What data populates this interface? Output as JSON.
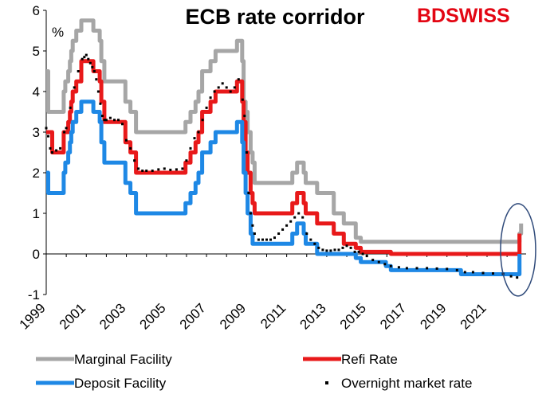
{
  "brand": {
    "part1": "BD",
    "part2": "SWISS"
  },
  "chart_data": {
    "type": "line",
    "title": "ECB rate corridor",
    "ylabel": "%",
    "xlabel": "",
    "xlim": [
      1999.0,
      2022.95
    ],
    "ylim": [
      -1,
      6
    ],
    "y_ticks": [
      -1,
      0,
      1,
      2,
      3,
      4,
      5,
      6
    ],
    "x_ticks": [
      "1999",
      "2001",
      "2003",
      "2005",
      "2007",
      "2009",
      "2011",
      "2013",
      "2015",
      "2017",
      "2019",
      "2021"
    ],
    "legend_placement": "bottom",
    "grid": false,
    "annotation": "ellipse highlighting 2022 rate increases",
    "series": [
      {
        "name": "Marginal Facility",
        "color": "#a6a6a6",
        "style": "line",
        "x": [
          1999.0,
          1999.05,
          1999.1,
          1999.3,
          1999.87,
          1999.95,
          2000.1,
          2000.18,
          2000.25,
          2000.32,
          2000.5,
          2000.75,
          2001.35,
          2001.67,
          2001.75,
          2001.9,
          2002.95,
          2003.2,
          2003.48,
          2005.95,
          2006.2,
          2006.45,
          2006.6,
          2006.78,
          2007.2,
          2007.45,
          2008.52,
          2008.78,
          2008.85,
          2008.95,
          2009.05,
          2009.2,
          2009.3,
          2009.4,
          2011.28,
          2011.52,
          2011.85,
          2011.95,
          2012.52,
          2013.35,
          2013.85,
          2014.45,
          2014.7,
          2022.55,
          2022.62,
          2022.7
        ],
        "y": [
          4.5,
          4.5,
          3.5,
          3.5,
          4.0,
          4.25,
          4.5,
          4.75,
          5.0,
          5.25,
          5.5,
          5.75,
          5.5,
          5.25,
          4.75,
          4.25,
          3.75,
          3.5,
          3.0,
          3.25,
          3.5,
          3.75,
          4.0,
          4.5,
          4.75,
          5.0,
          5.25,
          4.75,
          3.75,
          3.5,
          3.0,
          2.5,
          2.25,
          1.75,
          2.0,
          2.25,
          2.0,
          1.75,
          1.5,
          1.0,
          0.75,
          0.4,
          0.3,
          0.3,
          0.5,
          0.75
        ]
      },
      {
        "name": "Refi Rate",
        "color": "#e8191a",
        "style": "line",
        "x": [
          1999.0,
          1999.3,
          1999.87,
          2000.1,
          2000.18,
          2000.25,
          2000.32,
          2000.5,
          2000.75,
          2001.35,
          2001.67,
          2001.75,
          2001.9,
          2002.95,
          2003.2,
          2003.48,
          2005.95,
          2006.2,
          2006.45,
          2006.6,
          2006.78,
          2007.2,
          2007.45,
          2008.52,
          2008.78,
          2008.85,
          2008.95,
          2009.05,
          2009.2,
          2009.3,
          2009.4,
          2011.28,
          2011.52,
          2011.85,
          2011.95,
          2012.52,
          2013.35,
          2013.85,
          2014.45,
          2014.7,
          2016.2,
          2022.55,
          2022.62
        ],
        "y": [
          3.0,
          2.5,
          3.0,
          3.25,
          3.5,
          3.75,
          4.0,
          4.25,
          4.75,
          4.5,
          4.25,
          3.75,
          3.25,
          2.75,
          2.5,
          2.0,
          2.25,
          2.5,
          2.75,
          3.0,
          3.5,
          3.75,
          4.0,
          4.25,
          3.75,
          3.25,
          2.5,
          2.0,
          1.5,
          1.25,
          1.0,
          1.25,
          1.5,
          1.25,
          1.0,
          0.75,
          0.5,
          0.25,
          0.15,
          0.05,
          0.0,
          0.0,
          0.5
        ]
      },
      {
        "name": "Deposit Facility",
        "color": "#1e88e5",
        "style": "line",
        "x": [
          1999.0,
          1999.1,
          1999.3,
          1999.87,
          1999.95,
          2000.1,
          2000.18,
          2000.25,
          2000.32,
          2000.5,
          2000.75,
          2001.35,
          2001.67,
          2001.75,
          2001.9,
          2002.95,
          2003.2,
          2003.48,
          2005.95,
          2006.2,
          2006.45,
          2006.6,
          2006.78,
          2007.2,
          2007.45,
          2008.52,
          2008.78,
          2008.85,
          2008.95,
          2009.05,
          2009.2,
          2009.3,
          2009.4,
          2011.28,
          2011.52,
          2011.85,
          2011.95,
          2012.52,
          2014.45,
          2014.7,
          2015.95,
          2016.2,
          2019.7,
          2022.55,
          2022.62
        ],
        "y": [
          2.0,
          1.5,
          1.5,
          2.0,
          2.25,
          2.5,
          2.75,
          3.0,
          3.25,
          3.5,
          3.75,
          3.5,
          3.25,
          2.75,
          2.25,
          1.75,
          1.5,
          1.0,
          1.25,
          1.5,
          1.75,
          2.0,
          2.5,
          2.75,
          3.0,
          3.25,
          2.75,
          2.0,
          1.5,
          1.0,
          0.5,
          0.25,
          0.25,
          0.5,
          0.75,
          0.5,
          0.25,
          0.0,
          -0.1,
          -0.2,
          -0.3,
          -0.4,
          -0.5,
          -0.5,
          0.0
        ]
      },
      {
        "name": "Overnight market rate",
        "color": "#000000",
        "style": "dots",
        "x": [
          1999.0,
          1999.1,
          1999.2,
          1999.3,
          1999.5,
          1999.7,
          1999.9,
          2000.0,
          2000.2,
          2000.4,
          2000.6,
          2000.8,
          2000.9,
          2001.0,
          2001.1,
          2001.2,
          2001.3,
          2001.4,
          2001.5,
          2001.6,
          2001.7,
          2001.8,
          2001.9,
          2002.0,
          2002.2,
          2002.4,
          2002.6,
          2002.8,
          2003.0,
          2003.2,
          2003.4,
          2003.6,
          2003.8,
          2004.0,
          2004.3,
          2004.6,
          2004.9,
          2005.2,
          2005.5,
          2005.8,
          2006.0,
          2006.2,
          2006.4,
          2006.6,
          2006.8,
          2007.0,
          2007.2,
          2007.4,
          2007.6,
          2007.8,
          2008.0,
          2008.2,
          2008.4,
          2008.6,
          2008.8,
          2008.9,
          2009.0,
          2009.1,
          2009.2,
          2009.3,
          2009.4,
          2009.6,
          2009.8,
          2010.0,
          2010.2,
          2010.4,
          2010.6,
          2010.8,
          2011.0,
          2011.2,
          2011.4,
          2011.6,
          2011.8,
          2012.0,
          2012.2,
          2012.4,
          2012.6,
          2012.8,
          2013.0,
          2013.2,
          2013.4,
          2013.6,
          2013.8,
          2014.0,
          2014.2,
          2014.4,
          2014.6,
          2014.8,
          2015.0,
          2015.3,
          2015.6,
          2015.9,
          2016.2,
          2016.6,
          2017.0,
          2017.5,
          2018.0,
          2018.5,
          2019.0,
          2019.5,
          2019.9,
          2020.3,
          2020.8,
          2021.3,
          2021.8,
          2022.2,
          2022.5
        ],
        "y": [
          3.1,
          2.9,
          2.6,
          2.5,
          2.55,
          2.6,
          3.0,
          3.1,
          3.6,
          4.1,
          4.5,
          4.8,
          4.85,
          4.9,
          4.8,
          4.7,
          4.6,
          4.5,
          4.3,
          4.0,
          3.7,
          3.4,
          3.3,
          3.3,
          3.35,
          3.3,
          3.3,
          3.2,
          2.8,
          2.6,
          2.3,
          2.1,
          2.05,
          2.05,
          2.05,
          2.08,
          2.1,
          2.07,
          2.08,
          2.1,
          2.3,
          2.6,
          2.85,
          3.0,
          3.3,
          3.6,
          3.85,
          4.0,
          4.1,
          4.2,
          4.1,
          4.0,
          4.1,
          4.3,
          3.8,
          3.4,
          2.5,
          1.5,
          1.0,
          0.7,
          0.5,
          0.35,
          0.35,
          0.35,
          0.35,
          0.4,
          0.5,
          0.6,
          0.7,
          0.8,
          0.9,
          1.0,
          0.9,
          0.5,
          0.35,
          0.25,
          0.15,
          0.1,
          0.08,
          0.08,
          0.1,
          0.1,
          0.15,
          0.2,
          0.15,
          0.05,
          0.05,
          0.0,
          -0.05,
          -0.15,
          -0.2,
          -0.25,
          -0.3,
          -0.33,
          -0.35,
          -0.35,
          -0.35,
          -0.36,
          -0.37,
          -0.4,
          -0.45,
          -0.45,
          -0.47,
          -0.48,
          -0.49,
          -0.55,
          -0.58
        ]
      }
    ]
  }
}
